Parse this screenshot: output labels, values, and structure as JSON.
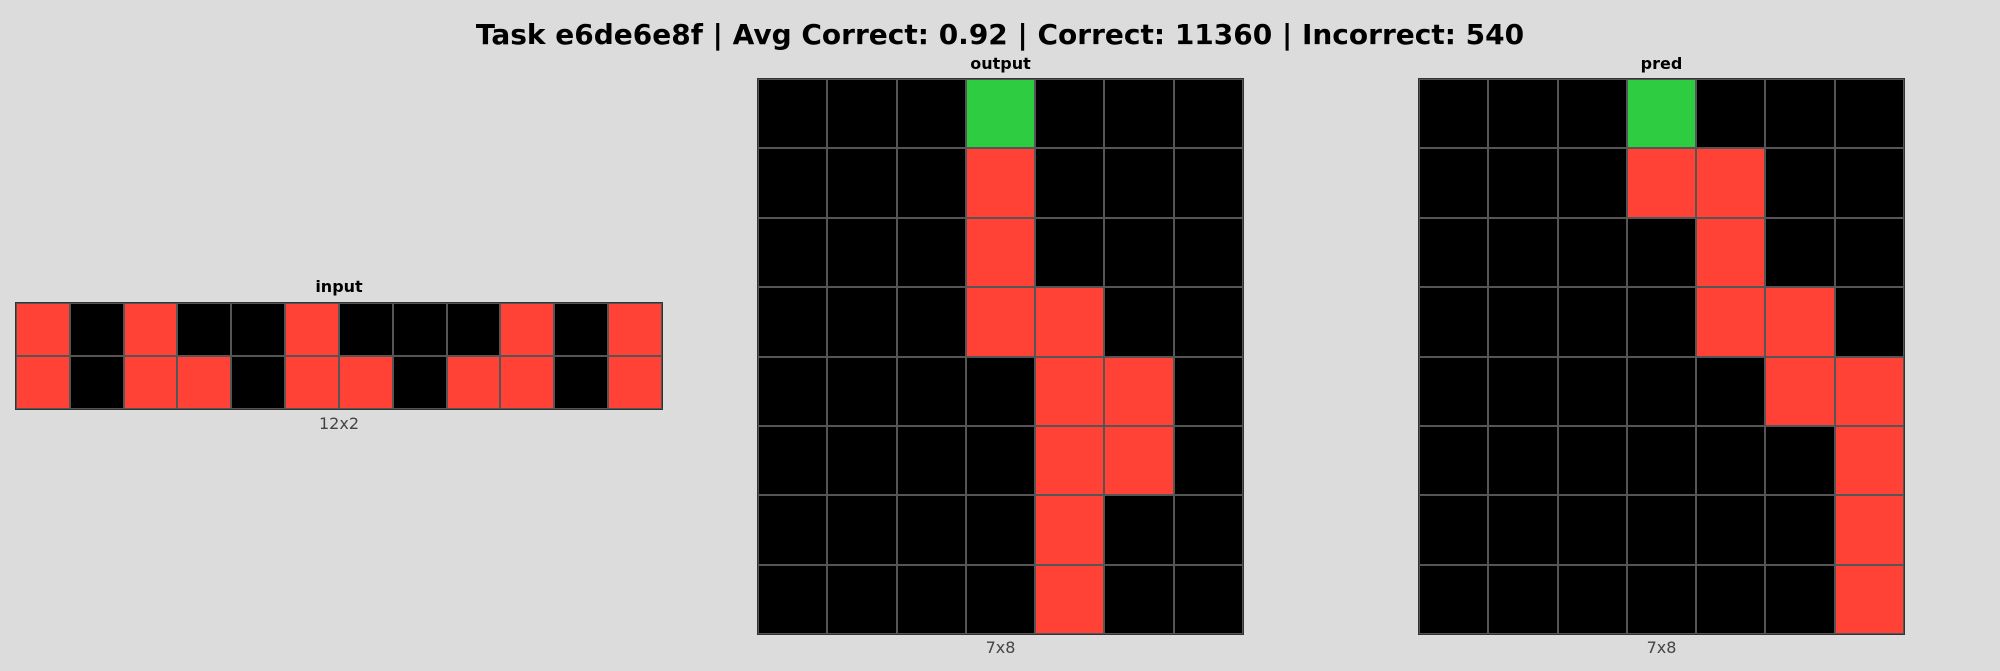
{
  "title": "Task e6de6e8f | Avg Correct: 0.92 | Correct: 11360 | Incorrect: 540",
  "palette": {
    "0": "#000000",
    "2": "#ff4136",
    "3": "#2ecc40"
  },
  "panels": [
    {
      "id": "input",
      "title": "input",
      "dims": "12x2",
      "cols": 12,
      "rows": 2,
      "grid": [
        [
          2,
          0,
          2,
          0,
          0,
          2,
          0,
          0,
          0,
          2,
          0,
          2
        ],
        [
          2,
          0,
          2,
          2,
          0,
          2,
          2,
          0,
          2,
          2,
          0,
          2
        ]
      ]
    },
    {
      "id": "output",
      "title": "output",
      "dims": "7x8",
      "cols": 7,
      "rows": 8,
      "grid": [
        [
          0,
          0,
          0,
          3,
          0,
          0,
          0
        ],
        [
          0,
          0,
          0,
          2,
          0,
          0,
          0
        ],
        [
          0,
          0,
          0,
          2,
          0,
          0,
          0
        ],
        [
          0,
          0,
          0,
          2,
          2,
          0,
          0
        ],
        [
          0,
          0,
          0,
          0,
          2,
          2,
          0
        ],
        [
          0,
          0,
          0,
          0,
          2,
          2,
          0
        ],
        [
          0,
          0,
          0,
          0,
          2,
          0,
          0
        ],
        [
          0,
          0,
          0,
          0,
          2,
          0,
          0
        ]
      ]
    },
    {
      "id": "pred",
      "title": "pred",
      "dims": "7x8",
      "cols": 7,
      "rows": 8,
      "grid": [
        [
          0,
          0,
          0,
          3,
          0,
          0,
          0
        ],
        [
          0,
          0,
          0,
          2,
          2,
          0,
          0
        ],
        [
          0,
          0,
          0,
          0,
          2,
          0,
          0
        ],
        [
          0,
          0,
          0,
          0,
          2,
          2,
          0
        ],
        [
          0,
          0,
          0,
          0,
          0,
          2,
          2
        ],
        [
          0,
          0,
          0,
          0,
          0,
          0,
          2
        ],
        [
          0,
          0,
          0,
          0,
          0,
          0,
          2
        ],
        [
          0,
          0,
          0,
          0,
          0,
          0,
          2
        ]
      ]
    }
  ]
}
